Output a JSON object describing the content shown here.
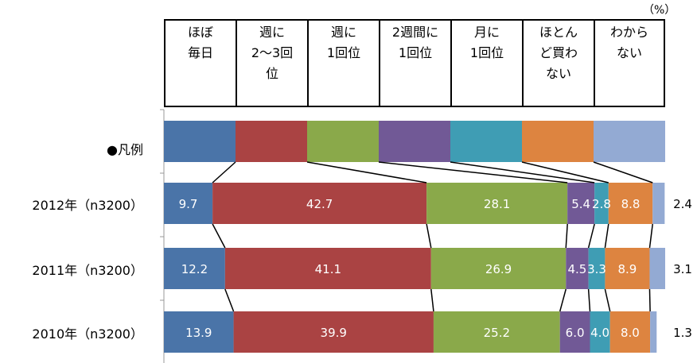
{
  "unit_label": "（%）",
  "legend_row_label": "●凡例",
  "colors": [
    "#4a74a8",
    "#aa4343",
    "#8aa94a",
    "#715996",
    "#3f9db4",
    "#dd8440",
    "#93aad3"
  ],
  "chart_data": {
    "type": "bar",
    "orientation": "horizontal-stacked-100",
    "categories": [
      "ほぼ\n毎日",
      "週に\n2〜3回\n位",
      "週に\n1回位",
      "2週間に\n1回位",
      "月に\n1回位",
      "ほとん\nど買わ\nない",
      "わから\nない"
    ],
    "rows": [
      {
        "label": "2012年（n3200）",
        "values": [
          9.7,
          42.7,
          28.1,
          5.4,
          2.8,
          8.8,
          2.4
        ]
      },
      {
        "label": "2011年（n3200）",
        "values": [
          12.2,
          41.1,
          26.9,
          4.5,
          3.3,
          8.9,
          3.1
        ]
      },
      {
        "label": "2010年（n3200）",
        "values": [
          13.9,
          39.9,
          25.2,
          6.0,
          4.0,
          8.0,
          1.3
        ]
      }
    ],
    "legend_position": "top"
  }
}
